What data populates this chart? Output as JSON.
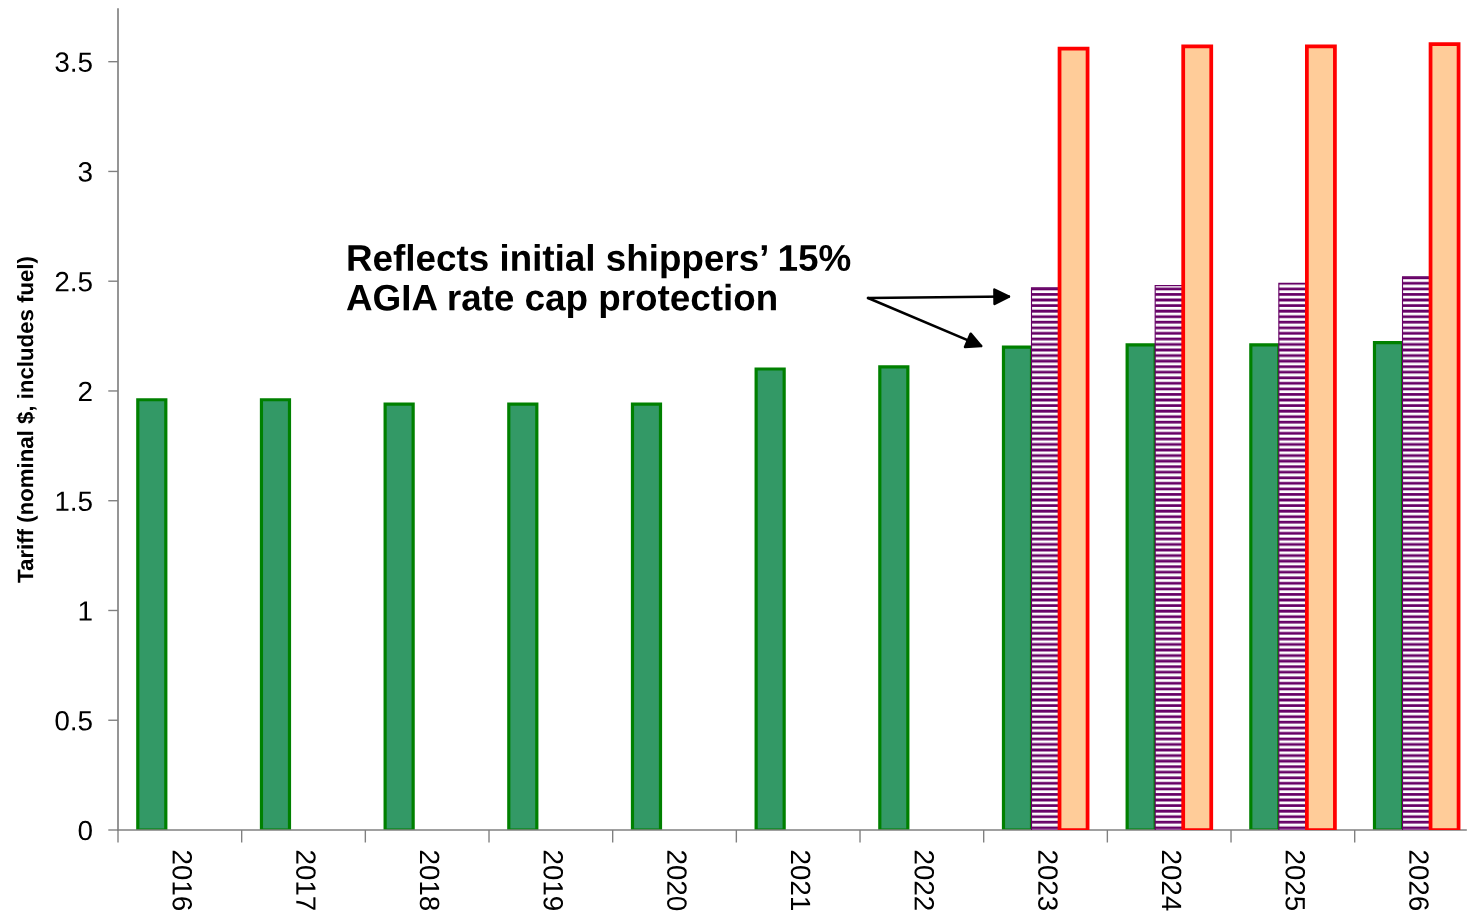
{
  "chart_data": {
    "type": "bar",
    "ylabel": "Tariff (nominal $, includes fuel)",
    "categories": [
      "2016",
      "2017",
      "2018",
      "2019",
      "2020",
      "2021",
      "2022",
      "2023",
      "2024",
      "2025",
      "2026"
    ],
    "series": [
      {
        "color": "#339966",
        "values": [
          1.96,
          1.96,
          1.94,
          1.94,
          1.94,
          2.1,
          2.11,
          2.2,
          2.21,
          2.21,
          2.22
        ]
      },
      {
        "color": "#660066",
        "values": [
          null,
          null,
          null,
          null,
          null,
          null,
          null,
          2.47,
          2.48,
          2.49,
          2.52
        ]
      },
      {
        "color": "#ffcc99",
        "values": [
          null,
          null,
          null,
          null,
          null,
          null,
          null,
          3.56,
          3.57,
          3.57,
          3.58
        ]
      }
    ],
    "ylim": [
      0,
      3.74
    ],
    "yticks": [
      0,
      0.5,
      1,
      1.5,
      2,
      2.5,
      3,
      3.5
    ],
    "grid": false,
    "annotations": [
      "Reflects initial shippers’ 15%\nAGIA rate cap protection"
    ]
  }
}
